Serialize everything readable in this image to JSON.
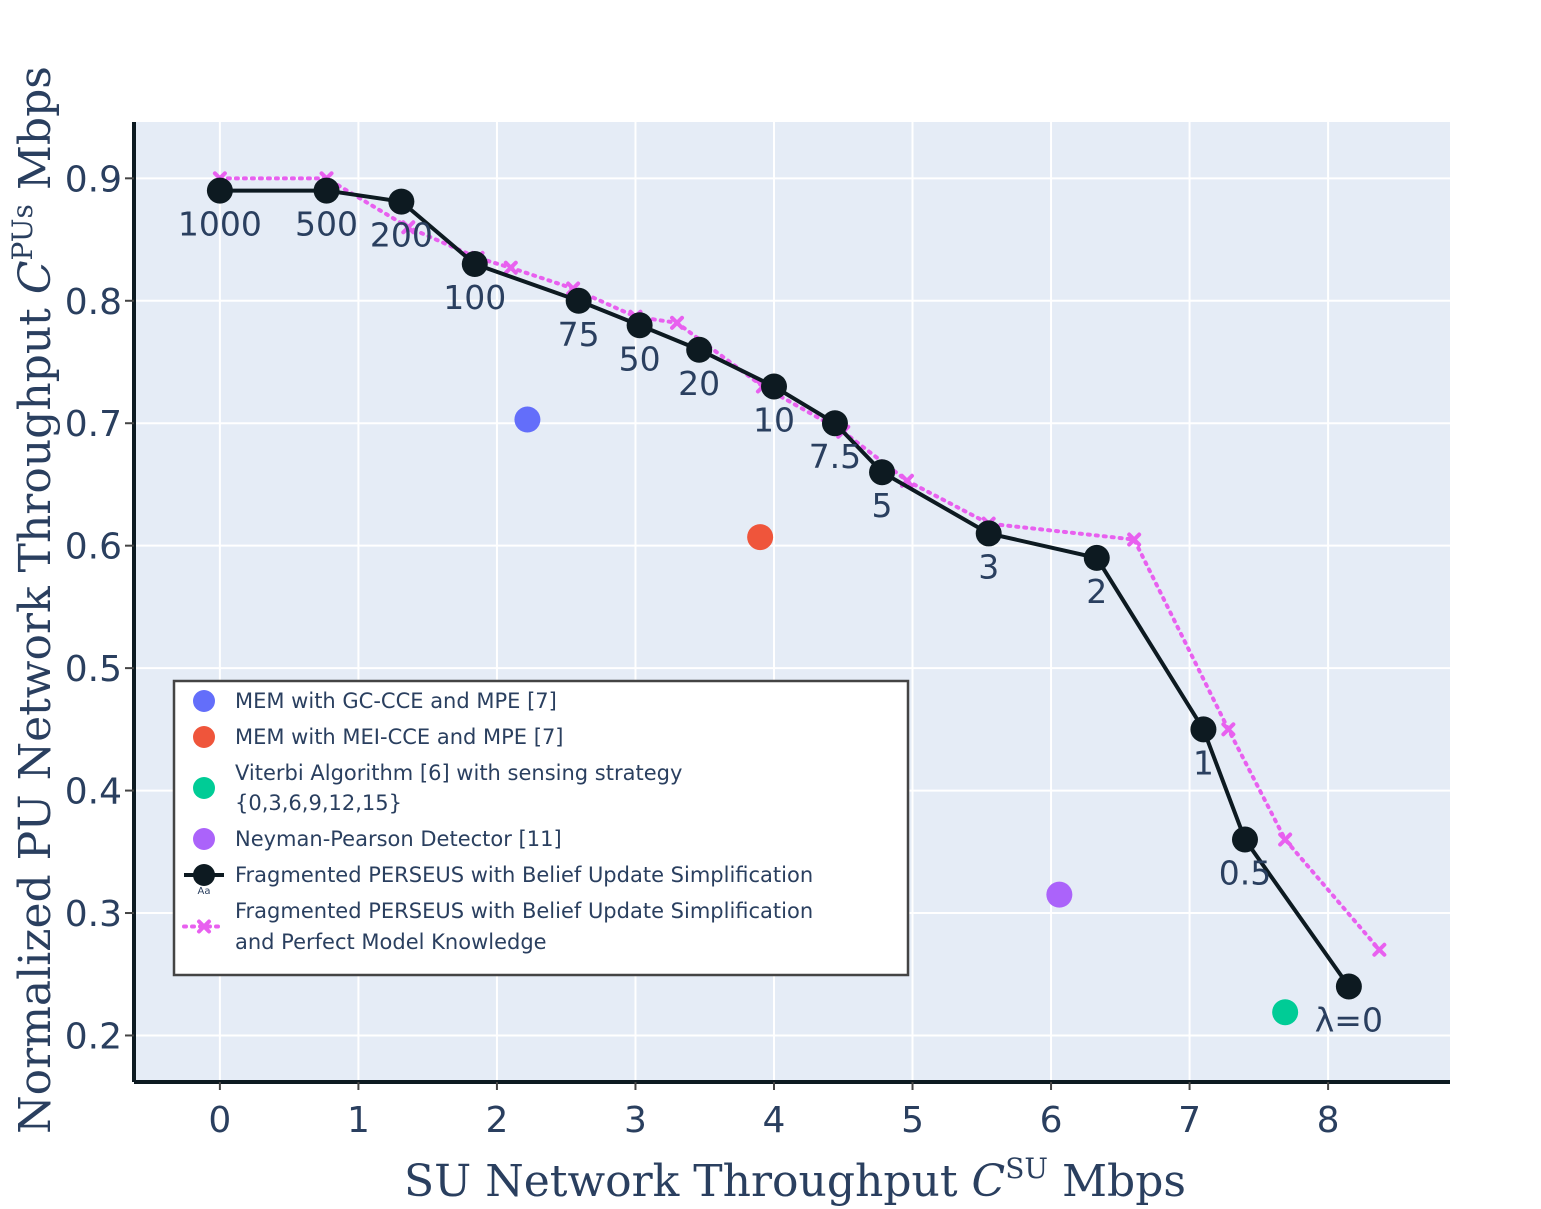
{
  "chart_data": {
    "type": "scatter",
    "xlabel": "SU Network Throughput",
    "xlabel_symbol": "C",
    "xlabel_superscript": "SU",
    "xlabel_unit": "Mbps",
    "ylabel": "Normalized PU Network Throughput",
    "ylabel_symbol": "C",
    "ylabel_superscript": "PUs",
    "ylabel_unit": "Mbps",
    "xlim": [
      -0.62,
      8.88
    ],
    "ylim": [
      0.162,
      0.946
    ],
    "x_ticks": [
      0,
      1,
      2,
      3,
      4,
      5,
      6,
      7,
      8
    ],
    "y_ticks": [
      0.2,
      0.3,
      0.4,
      0.5,
      0.6,
      0.7,
      0.8,
      0.9
    ],
    "grid": true,
    "legend_position": "lower-left",
    "legend_marker_text": "Aa",
    "series": [
      {
        "name": "MEM with GC-CCE and MPE [7]",
        "mode": "markers",
        "color": "#636efa",
        "x": [
          2.22
        ],
        "y": [
          0.703
        ]
      },
      {
        "name": "MEM with MEI-CCE and MPE [7]",
        "mode": "markers",
        "color": "#ef553b",
        "x": [
          3.9
        ],
        "y": [
          0.607
        ]
      },
      {
        "name": "Viterbi Algorithm [6] with sensing strategy {0,3,6,9,12,15}",
        "name_lines": [
          "Viterbi Algorithm [6] with sensing strategy",
          "{0,3,6,9,12,15}"
        ],
        "mode": "markers",
        "color": "#00cc96",
        "x": [
          7.69
        ],
        "y": [
          0.219
        ]
      },
      {
        "name": "Neyman-Pearson Detector [11]",
        "mode": "markers",
        "color": "#ab63fa",
        "x": [
          6.06
        ],
        "y": [
          0.315
        ]
      },
      {
        "name": "Fragmented PERSEUS with Belief Update Simplification",
        "mode": "lines+markers+text",
        "color": "#0d1a21",
        "x": [
          0,
          0.77,
          1.31,
          1.84,
          2.59,
          3.03,
          3.46,
          4.0,
          4.44,
          4.78,
          5.55,
          6.33,
          7.1,
          7.4,
          8.15
        ],
        "y": [
          0.89,
          0.89,
          0.881,
          0.83,
          0.8,
          0.78,
          0.76,
          0.73,
          0.7,
          0.66,
          0.61,
          0.59,
          0.45,
          0.36,
          0.24
        ],
        "labels": [
          "1000",
          "500",
          "200",
          "100",
          "75",
          "50",
          "20",
          "10",
          "7.5",
          "5",
          "3",
          "2",
          "1",
          "0.5",
          "λ=0"
        ]
      },
      {
        "name": "Fragmented PERSEUS with Belief Update Simplification and Perfect Model Knowledge",
        "name_lines": [
          "Fragmented PERSEUS with Belief Update Simplification",
          "and Perfect Model Knowledge"
        ],
        "mode": "lines+markers",
        "color": "#e860ef",
        "x": [
          0,
          0.77,
          1.36,
          1.86,
          2.1,
          2.55,
          3.0,
          3.3,
          3.92,
          4.5,
          4.96,
          5.55,
          6.6,
          7.28,
          7.69,
          8.37
        ],
        "y": [
          0.9,
          0.9,
          0.86,
          0.835,
          0.827,
          0.81,
          0.787,
          0.782,
          0.73,
          0.693,
          0.653,
          0.618,
          0.605,
          0.45,
          0.36,
          0.27
        ]
      }
    ]
  }
}
